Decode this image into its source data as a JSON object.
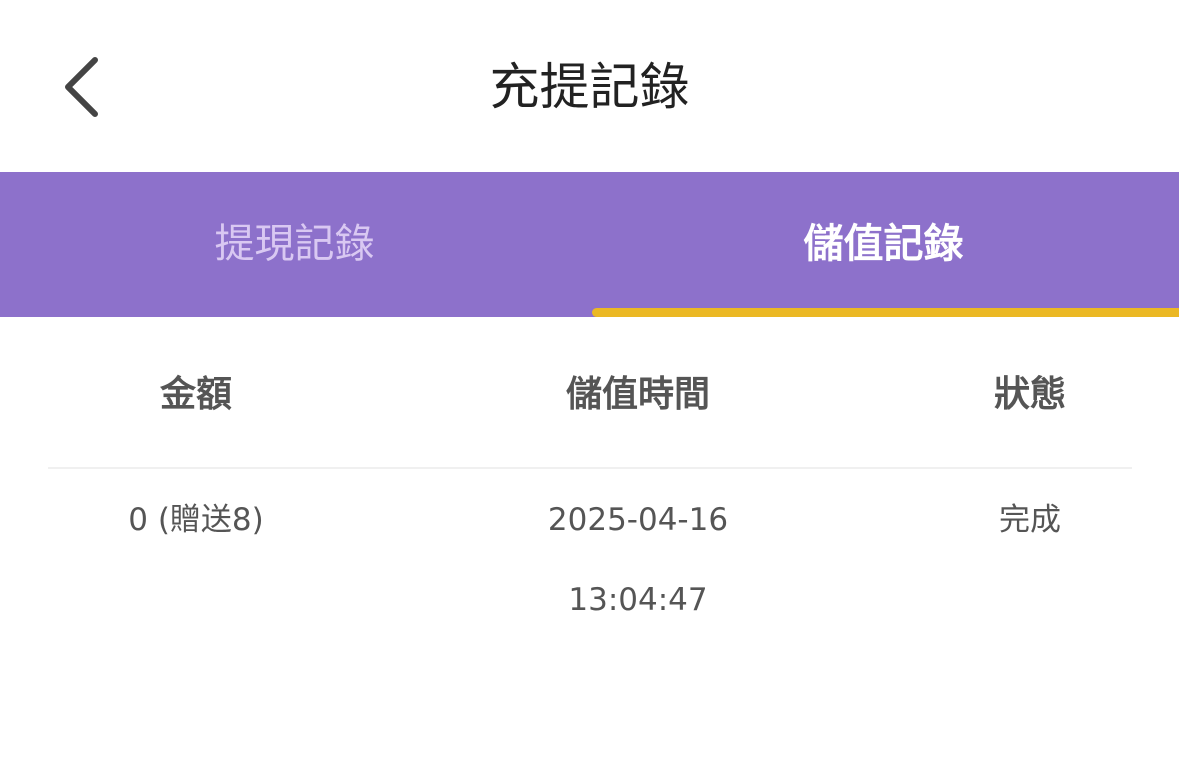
{
  "header": {
    "title": "充提記錄",
    "back_icon": "chevron-left-icon"
  },
  "tabs": [
    {
      "label": "提現記錄",
      "active": false
    },
    {
      "label": "儲值記錄",
      "active": true
    }
  ],
  "colors": {
    "tab_bar": "#8D71CB",
    "active_indicator": "#EBB824"
  },
  "table": {
    "columns": [
      "金額",
      "儲值時間",
      "狀態"
    ],
    "rows": [
      [
        "0 (贈送8)",
        "2025-04-16 13:04:47",
        "完成"
      ]
    ]
  }
}
